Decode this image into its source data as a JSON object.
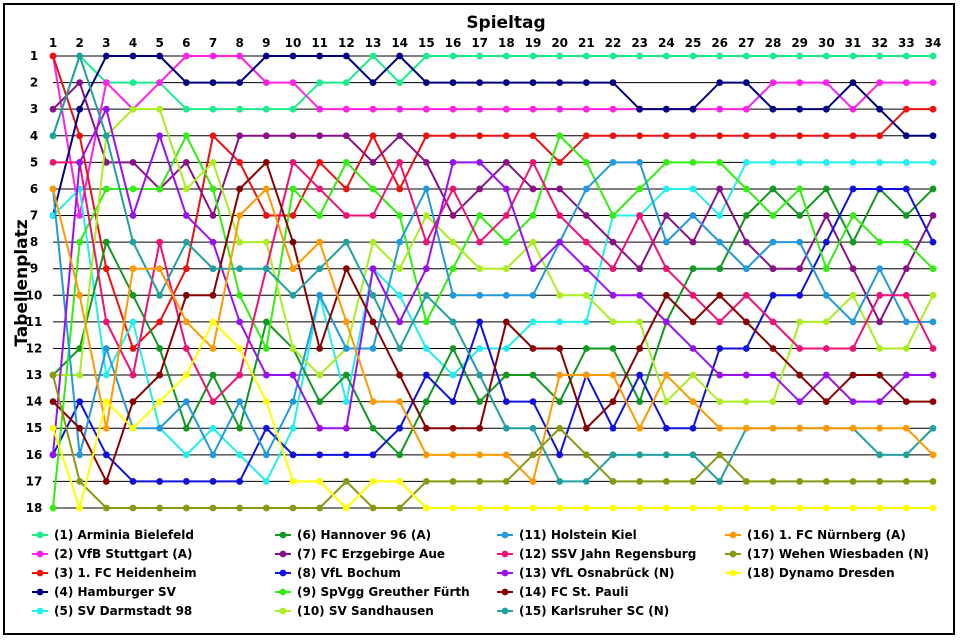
{
  "chart_data": {
    "type": "line",
    "title": "",
    "xlabel": "Spieltag",
    "ylabel": "Tabellenplatz",
    "x": [
      1,
      2,
      3,
      4,
      5,
      6,
      7,
      8,
      9,
      10,
      11,
      12,
      13,
      14,
      15,
      16,
      17,
      18,
      19,
      20,
      21,
      22,
      23,
      24,
      25,
      26,
      27,
      28,
      29,
      30,
      31,
      32,
      33,
      34
    ],
    "xlim": [
      1,
      34
    ],
    "ylim": [
      1,
      18
    ],
    "y_inverted": true,
    "y_ticks": [
      1,
      2,
      3,
      4,
      5,
      6,
      7,
      8,
      9,
      10,
      11,
      12,
      13,
      14,
      15,
      16,
      17,
      18
    ],
    "grid": "horizontal",
    "legend_position": "bottom",
    "series": [
      {
        "name": "(1) Arminia Bielefeld",
        "color": "#1aee8c",
        "values": [
          4,
          1,
          2,
          2,
          2,
          3,
          3,
          3,
          3,
          3,
          2,
          2,
          1,
          2,
          1,
          1,
          1,
          1,
          1,
          1,
          1,
          1,
          1,
          1,
          1,
          1,
          1,
          1,
          1,
          1,
          1,
          1,
          1,
          1
        ]
      },
      {
        "name": "(2) VfB Stuttgart (A)",
        "color": "#ff22e6",
        "values": [
          1,
          7,
          2,
          3,
          2,
          1,
          1,
          1,
          2,
          2,
          3,
          3,
          3,
          3,
          3,
          3,
          3,
          3,
          3,
          3,
          3,
          3,
          3,
          3,
          3,
          3,
          3,
          2,
          2,
          2,
          3,
          2,
          2,
          2
        ]
      },
      {
        "name": "(3) 1. FC Heidenheim",
        "color": "#ee1111",
        "values": [
          1,
          4,
          9,
          12,
          11,
          9,
          4,
          5,
          7,
          7,
          5,
          6,
          4,
          6,
          4,
          4,
          4,
          4,
          4,
          5,
          4,
          4,
          4,
          4,
          4,
          4,
          4,
          4,
          4,
          4,
          4,
          4,
          3,
          3
        ]
      },
      {
        "name": "(4) Hamburger SV",
        "color": "#000080",
        "values": [
          7,
          3,
          1,
          1,
          1,
          2,
          2,
          2,
          1,
          1,
          1,
          1,
          2,
          1,
          2,
          2,
          2,
          2,
          2,
          2,
          2,
          2,
          3,
          3,
          3,
          2,
          2,
          3,
          3,
          3,
          2,
          3,
          4,
          4
        ]
      },
      {
        "name": "(5) SV Darmstadt 98",
        "color": "#22eeee",
        "values": [
          7,
          6,
          13,
          11,
          15,
          16,
          15,
          16,
          17,
          15,
          10,
          14,
          9,
          10,
          12,
          13,
          12,
          12,
          11,
          11,
          11,
          7,
          7,
          6,
          6,
          7,
          5,
          5,
          5,
          5,
          5,
          5,
          5,
          5
        ]
      },
      {
        "name": "(6) Hannover 96 (A)",
        "color": "#119922",
        "values": [
          13,
          12,
          8,
          10,
          12,
          15,
          13,
          15,
          11,
          12,
          14,
          13,
          15,
          16,
          14,
          12,
          14,
          13,
          13,
          14,
          12,
          12,
          14,
          11,
          9,
          9,
          7,
          6,
          7,
          6,
          8,
          6,
          7,
          6
        ]
      },
      {
        "name": "(7) FC Erzgebirge Aue",
        "color": "#881188",
        "values": [
          3,
          2,
          5,
          5,
          6,
          5,
          7,
          4,
          4,
          4,
          4,
          4,
          5,
          4,
          5,
          7,
          6,
          5,
          6,
          6,
          7,
          8,
          9,
          7,
          8,
          6,
          8,
          9,
          9,
          7,
          9,
          11,
          9,
          7
        ]
      },
      {
        "name": "(8) VfL Bochum",
        "color": "#1111dd",
        "values": [
          16,
          14,
          16,
          17,
          17,
          17,
          17,
          17,
          15,
          16,
          16,
          16,
          16,
          15,
          13,
          14,
          11,
          14,
          14,
          16,
          13,
          15,
          13,
          15,
          15,
          12,
          12,
          10,
          10,
          8,
          6,
          6,
          6,
          8
        ]
      },
      {
        "name": "(9) SpVgg Greuther Fürth",
        "color": "#33ee11",
        "values": [
          18,
          8,
          6,
          6,
          6,
          4,
          6,
          10,
          12,
          6,
          7,
          5,
          6,
          7,
          11,
          9,
          7,
          8,
          7,
          4,
          5,
          7,
          6,
          5,
          5,
          5,
          6,
          7,
          6,
          9,
          7,
          8,
          8,
          9
        ]
      },
      {
        "name": "(10) SV Sandhausen",
        "color": "#aaee22",
        "values": [
          13,
          13,
          4,
          3,
          3,
          6,
          5,
          8,
          8,
          12,
          13,
          12,
          8,
          9,
          7,
          8,
          9,
          9,
          8,
          10,
          10,
          11,
          11,
          14,
          13,
          14,
          14,
          14,
          11,
          11,
          10,
          12,
          12,
          10
        ]
      },
      {
        "name": "(11) Holstein Kiel",
        "color": "#2299dd",
        "values": [
          6,
          16,
          12,
          15,
          15,
          14,
          16,
          14,
          16,
          14,
          10,
          12,
          12,
          8,
          6,
          10,
          10,
          10,
          10,
          8,
          6,
          5,
          5,
          8,
          7,
          8,
          9,
          8,
          8,
          10,
          11,
          9,
          11,
          11
        ]
      },
      {
        "name": "(12) SSV Jahn Regensburg",
        "color": "#ee1177",
        "values": [
          5,
          5,
          11,
          13,
          8,
          12,
          14,
          13,
          9,
          5,
          6,
          7,
          7,
          5,
          8,
          6,
          8,
          7,
          5,
          7,
          8,
          9,
          7,
          9,
          10,
          11,
          10,
          11,
          12,
          12,
          12,
          10,
          10,
          12
        ]
      },
      {
        "name": "(13) VfL Osnabrück (N)",
        "color": "#9911ee",
        "values": [
          16,
          5,
          3,
          7,
          4,
          7,
          8,
          11,
          13,
          13,
          15,
          15,
          9,
          11,
          9,
          5,
          5,
          6,
          9,
          8,
          9,
          10,
          10,
          11,
          12,
          13,
          13,
          13,
          14,
          13,
          14,
          14,
          13,
          13
        ]
      },
      {
        "name": "(14) FC St. Pauli",
        "color": "#880000",
        "values": [
          14,
          15,
          17,
          14,
          13,
          10,
          10,
          6,
          5,
          8,
          12,
          9,
          11,
          13,
          15,
          15,
          15,
          11,
          12,
          12,
          15,
          14,
          12,
          10,
          11,
          10,
          11,
          12,
          13,
          14,
          13,
          13,
          14,
          14
        ]
      },
      {
        "name": "(15) Karlsruher SC (N)",
        "color": "#22a0a0",
        "values": [
          4,
          1,
          4,
          8,
          10,
          8,
          9,
          9,
          9,
          10,
          9,
          8,
          10,
          12,
          10,
          11,
          13,
          15,
          15,
          17,
          17,
          16,
          16,
          16,
          16,
          17,
          15,
          15,
          15,
          15,
          15,
          16,
          16,
          15
        ]
      },
      {
        "name": "(16) 1. FC Nürnberg (A)",
        "color": "#ff9900",
        "values": [
          6,
          10,
          15,
          9,
          9,
          11,
          12,
          7,
          6,
          9,
          8,
          11,
          14,
          14,
          16,
          16,
          16,
          16,
          17,
          13,
          13,
          13,
          15,
          13,
          14,
          15,
          15,
          15,
          15,
          15,
          15,
          15,
          15,
          16
        ]
      },
      {
        "name": "(17) Wehen Wiesbaden (N)",
        "color": "#889911",
        "values": [
          13,
          17,
          18,
          18,
          18,
          18,
          18,
          18,
          18,
          18,
          18,
          17,
          18,
          18,
          17,
          17,
          17,
          17,
          16,
          15,
          16,
          17,
          17,
          17,
          17,
          16,
          17,
          17,
          17,
          17,
          17,
          17,
          17,
          17
        ]
      },
      {
        "name": "(18) Dynamo Dresden",
        "color": "#ffff00",
        "values": [
          15,
          18,
          14,
          15,
          14,
          13,
          11,
          12,
          14,
          17,
          17,
          18,
          17,
          17,
          18,
          18,
          18,
          18,
          18,
          18,
          18,
          18,
          18,
          18,
          18,
          18,
          18,
          18,
          18,
          18,
          18,
          18,
          18,
          18
        ]
      }
    ]
  }
}
